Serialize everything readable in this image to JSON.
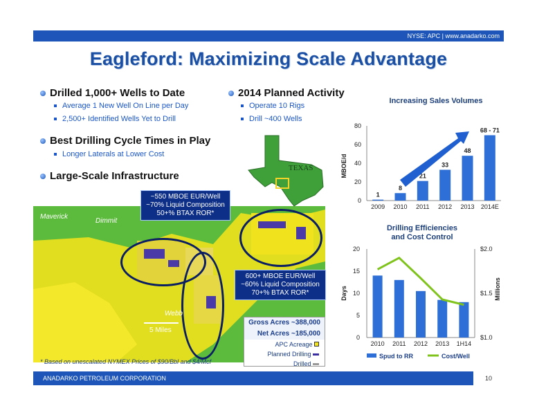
{
  "header": {
    "ticker": "NYSE: APC | www.anadarko.com"
  },
  "title": "Eagleford: Maximizing Scale Advantage",
  "left_bullets": [
    {
      "text": "Drilled 1,000+ Wells to Date",
      "subs": [
        "Average 1 New Well On Line per Day",
        "2,500+ Identified Wells Yet to Drill"
      ]
    },
    {
      "text": "Best Drilling Cycle Times in Play",
      "subs": [
        "Longer Laterals at Lower Cost"
      ]
    },
    {
      "text": "Large-Scale Infrastructure",
      "subs": []
    }
  ],
  "planned": {
    "text": "2014 Planned Activity",
    "subs": [
      "Operate 10 Rigs",
      "Drill ~400 Wells"
    ]
  },
  "texas_label": "TEXAS",
  "map": {
    "labels": {
      "maverick": "Maverick",
      "dimmit": "Dimmit",
      "webb": "Webb",
      "scale": "5 Miles"
    },
    "callout1": [
      "~550 MBOE EUR/Well",
      "~70% Liquid Composition",
      "50+% BTAX ROR*"
    ],
    "callout2": [
      "600+ MBOE EUR/Well",
      "~60% Liquid Composition",
      "70+% BTAX ROR*"
    ],
    "legend": {
      "gross": "Gross Acres ~388,000",
      "net": "Net Acres  ~185,000",
      "items": [
        "APC Acreage",
        "Planned Drilling",
        "Drilled"
      ]
    }
  },
  "footnote": "* Based on unescalated NYMEX Prices of $90/Bbl and $4/Mcf",
  "footer": {
    "company": "ANADARKO PETROLEUM CORPORATION",
    "page": "10"
  },
  "chart_data": [
    {
      "type": "bar",
      "title": "Increasing Sales Volumes",
      "ylabel": "MBOE/d",
      "categories": [
        "2009",
        "2010",
        "2011",
        "2012",
        "2013",
        "2014E"
      ],
      "values": [
        1,
        8,
        21,
        33,
        48,
        70
      ],
      "data_labels": [
        "1",
        "8",
        "21",
        "33",
        "48",
        "68 - 71"
      ],
      "ylim": [
        0,
        80
      ],
      "yticks": [
        "0",
        "20",
        "40",
        "60",
        "80"
      ],
      "annotation": "100+% CAGR",
      "colors": {
        "bar": "#2d6fd6",
        "arrow": "#1f5fd0"
      }
    },
    {
      "type": "bar",
      "title_lines": [
        "Drilling Efficiencies",
        "and Cost Control"
      ],
      "ylabel": "Days",
      "y2label": "Millions",
      "categories": [
        "2010",
        "2011",
        "2012",
        "2013",
        "1H14"
      ],
      "series": [
        {
          "name": "Spud to RR",
          "type": "bar",
          "values": [
            14,
            13,
            10.5,
            8.5,
            8
          ]
        },
        {
          "name": "Cost/Well",
          "type": "line",
          "axis": "right",
          "values": [
            1.77,
            1.9,
            1.67,
            1.43,
            1.37
          ]
        }
      ],
      "ylim": [
        0,
        20
      ],
      "yticks": [
        "0",
        "5",
        "10",
        "15",
        "20"
      ],
      "y2lim": [
        1.0,
        2.0
      ],
      "y2ticks": [
        "$1.0",
        "$1.5",
        "$2.0"
      ],
      "legend": "bottom",
      "colors": {
        "bar": "#2d6fd6",
        "line": "#7fc31c"
      }
    }
  ]
}
